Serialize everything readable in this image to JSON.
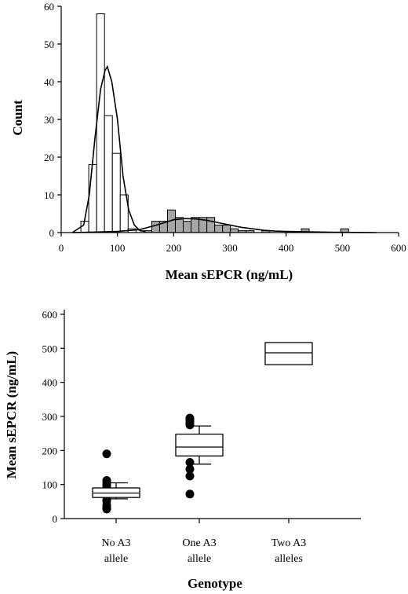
{
  "chart_data": [
    {
      "type": "bar",
      "subtype": "histogram",
      "xlabel": "Mean sEPCR (ng/mL)",
      "ylabel": "Count",
      "xlim": [
        0,
        600
      ],
      "ylim": [
        0,
        60
      ],
      "xticks": [
        "0",
        "100",
        "200",
        "300",
        "400",
        "500",
        "600"
      ],
      "yticks": [
        "0",
        "10",
        "20",
        "30",
        "40",
        "50",
        "60"
      ],
      "bin_width": 14,
      "series": [
        {
          "fill": "#ffffff",
          "bins": [
            {
              "x": 42,
              "value": 3
            },
            {
              "x": 56,
              "value": 18
            },
            {
              "x": 70,
              "value": 58
            },
            {
              "x": 84,
              "value": 31
            },
            {
              "x": 98,
              "value": 21
            },
            {
              "x": 112,
              "value": 10
            },
            {
              "x": 126,
              "value": 1
            }
          ]
        },
        {
          "fill": "#a6a6a6",
          "bins": [
            {
              "x": 56,
              "value": 0.5
            },
            {
              "x": 70,
              "value": 1
            },
            {
              "x": 84,
              "value": 1
            },
            {
              "x": 98,
              "value": 0.5
            },
            {
              "x": 154,
              "value": 0.5
            },
            {
              "x": 168,
              "value": 3
            },
            {
              "x": 182,
              "value": 3
            },
            {
              "x": 196,
              "value": 6
            },
            {
              "x": 210,
              "value": 4
            },
            {
              "x": 224,
              "value": 3
            },
            {
              "x": 238,
              "value": 4
            },
            {
              "x": 252,
              "value": 4
            },
            {
              "x": 266,
              "value": 4
            },
            {
              "x": 280,
              "value": 2
            },
            {
              "x": 294,
              "value": 2
            },
            {
              "x": 308,
              "value": 1
            },
            {
              "x": 322,
              "value": 0.5
            },
            {
              "x": 336,
              "value": 0.5
            },
            {
              "x": 364,
              "value": 0.5
            },
            {
              "x": 434,
              "value": 1
            },
            {
              "x": 504,
              "value": 1
            }
          ]
        }
      ],
      "curves": [
        {
          "points": [
            [
              20,
              0
            ],
            [
              40,
              2
            ],
            [
              50,
              10
            ],
            [
              60,
              25
            ],
            [
              70,
              38
            ],
            [
              78,
              43
            ],
            [
              82,
              44
            ],
            [
              90,
              40
            ],
            [
              100,
              30
            ],
            [
              110,
              15
            ],
            [
              120,
              6
            ],
            [
              130,
              2
            ],
            [
              140,
              0.5
            ],
            [
              150,
              0.3
            ]
          ]
        },
        {
          "points": [
            [
              20,
              0
            ],
            [
              100,
              0.3
            ],
            [
              140,
              0.8
            ],
            [
              170,
              2
            ],
            [
              200,
              3.4
            ],
            [
              220,
              3.7
            ],
            [
              240,
              3.6
            ],
            [
              260,
              3.2
            ],
            [
              280,
              2.6
            ],
            [
              300,
              2
            ],
            [
              320,
              1.4
            ],
            [
              340,
              1
            ],
            [
              360,
              0.6
            ],
            [
              380,
              0.4
            ],
            [
              400,
              0.3
            ],
            [
              440,
              0.2
            ],
            [
              480,
              0.1
            ],
            [
              520,
              0.05
            ],
            [
              560,
              0
            ]
          ]
        }
      ]
    },
    {
      "type": "boxplot",
      "xlabel": "Genotype",
      "ylabel": "Mean sEPCR (ng/mL)",
      "ylim": [
        0,
        600
      ],
      "yticks": [
        "0",
        "100",
        "200",
        "300",
        "400",
        "500",
        "600"
      ],
      "categories": [
        [
          "No A3",
          "allele"
        ],
        [
          "One A3",
          "allele"
        ],
        [
          "Two A3",
          "alleles"
        ]
      ],
      "boxes": [
        {
          "q1": 62,
          "median": 75,
          "q3": 90,
          "whisker_low": 58,
          "whisker_high": 105,
          "outliers": [
            28,
            33,
            40,
            52,
            55,
            95,
            100,
            108,
            112,
            190
          ]
        },
        {
          "q1": 184,
          "median": 210,
          "q3": 248,
          "whisker_low": 160,
          "whisker_high": 272,
          "outliers": [
            72,
            125,
            145,
            165,
            275,
            282,
            288,
            292,
            295
          ]
        },
        {
          "q1": 452,
          "median": 487,
          "q3": 517,
          "whisker_low": null,
          "whisker_high": null,
          "outliers": []
        }
      ]
    }
  ]
}
